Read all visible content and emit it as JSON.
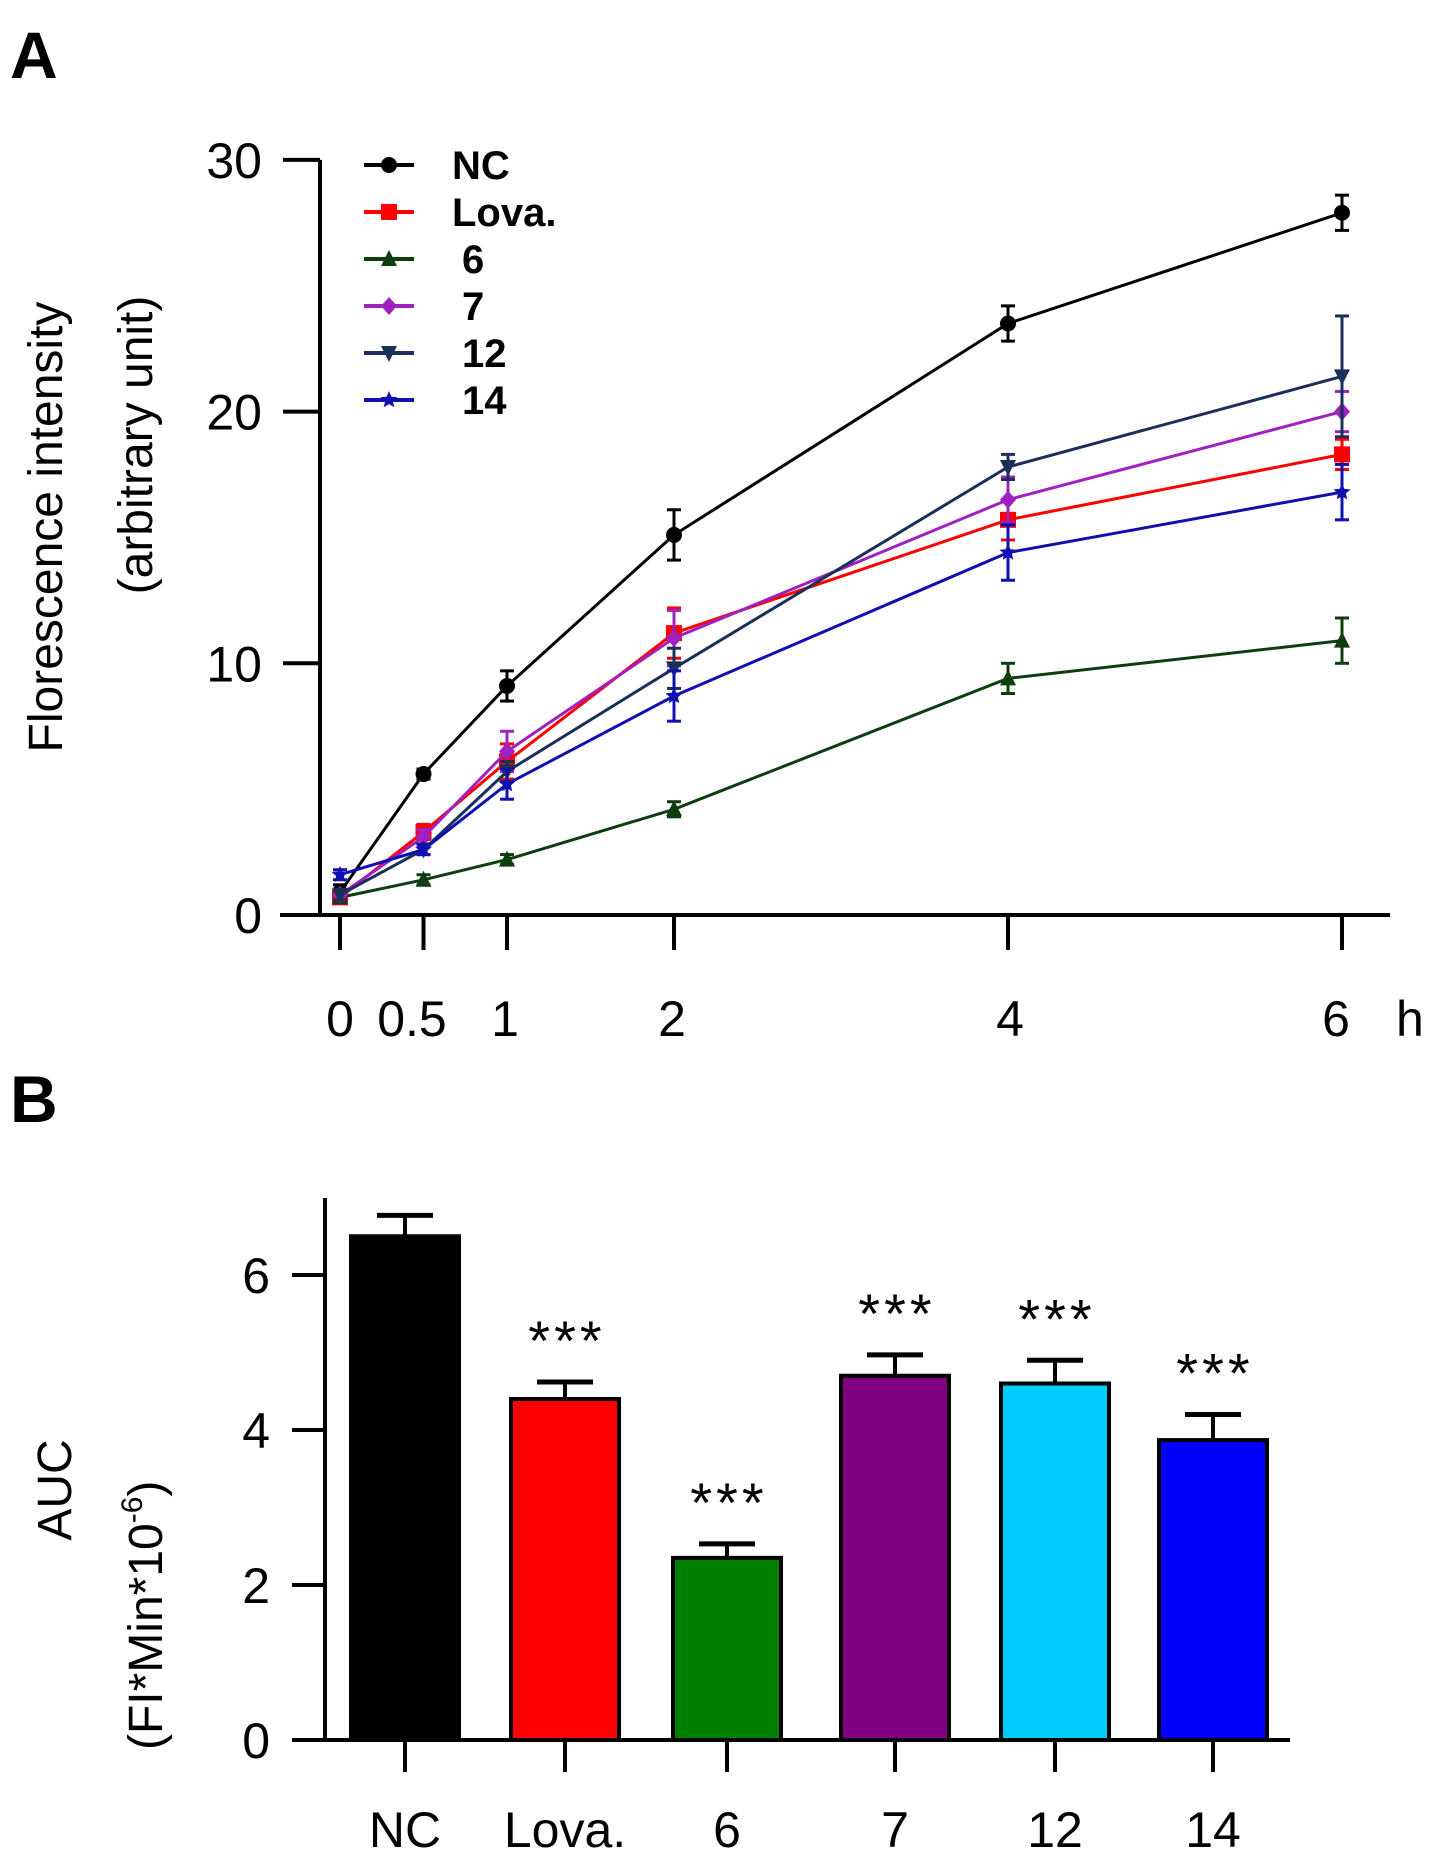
{
  "panels": {
    "a_label": "A",
    "b_label": "B"
  },
  "chart_data": [
    {
      "type": "line",
      "panel": "A",
      "ylabel_line1": "Florescence intensity",
      "ylabel_line2": "(arbitrary unit)",
      "x_unit": "h",
      "x": [
        0,
        0.5,
        1,
        2,
        4,
        6
      ],
      "x_tick_labels": [
        "0",
        "0.5",
        "1",
        "2",
        "4",
        "6"
      ],
      "ylim": [
        0,
        30
      ],
      "y_ticks": [
        0,
        10,
        20,
        30
      ],
      "y_tick_labels": [
        "0",
        "10",
        "20",
        "30"
      ],
      "legend_position": "top-left",
      "series": [
        {
          "name": "NC",
          "color": "#000000",
          "marker": "circle",
          "values": [
            0.9,
            5.6,
            9.1,
            15.1,
            23.5,
            27.9
          ],
          "errors": [
            0.3,
            0.2,
            0.6,
            1.0,
            0.7,
            0.7
          ]
        },
        {
          "name": "Lova.",
          "color": "#ff0000",
          "marker": "square",
          "values": [
            0.7,
            3.3,
            6.1,
            11.2,
            15.7,
            18.3
          ],
          "errors": [
            0.2,
            0.3,
            0.7,
            1.0,
            0.8,
            0.6
          ]
        },
        {
          "name": "6",
          "color": "#0f3d0f",
          "marker": "triangle-up",
          "values": [
            0.7,
            1.4,
            2.2,
            4.2,
            9.4,
            10.9
          ],
          "errors": [
            0.2,
            0.2,
            0.2,
            0.3,
            0.6,
            0.9
          ]
        },
        {
          "name": "7",
          "color": "#a020c0",
          "marker": "diamond",
          "values": [
            0.8,
            3.1,
            6.5,
            11.0,
            16.5,
            20.0
          ],
          "errors": [
            0.2,
            0.3,
            0.8,
            1.1,
            0.9,
            0.8
          ]
        },
        {
          "name": "12",
          "color": "#1a2f5a",
          "marker": "triangle-down",
          "values": [
            0.8,
            2.6,
            5.7,
            9.8,
            17.8,
            21.4
          ],
          "errors": [
            0.2,
            0.2,
            0.4,
            0.8,
            0.5,
            2.4
          ]
        },
        {
          "name": "14",
          "color": "#1010b0",
          "marker": "star",
          "values": [
            1.6,
            2.6,
            5.2,
            8.7,
            14.4,
            16.8
          ],
          "errors": [
            0.2,
            0.2,
            0.6,
            1.0,
            1.1,
            1.1
          ]
        }
      ]
    },
    {
      "type": "bar",
      "panel": "B",
      "ylabel_line1": "AUC",
      "ylabel_line2": "(FI*Min*10",
      "ylabel_sup": "-6",
      "ylabel_close": ")",
      "categories": [
        "NC",
        "Lova.",
        "6",
        "7",
        "12",
        "14"
      ],
      "values": [
        6.5,
        4.4,
        2.35,
        4.7,
        4.6,
        3.87
      ],
      "errors": [
        0.27,
        0.22,
        0.18,
        0.27,
        0.3,
        0.33
      ],
      "colors": [
        "#000000",
        "#ff0000",
        "#008000",
        "#800080",
        "#00ccff",
        "#0000ff"
      ],
      "significance": [
        "",
        "***",
        "***",
        "***",
        "***",
        "***"
      ],
      "ylim": [
        0,
        7
      ],
      "y_ticks": [
        0,
        2,
        4,
        6
      ],
      "y_tick_labels": [
        "0",
        "2",
        "4",
        "6"
      ]
    }
  ]
}
